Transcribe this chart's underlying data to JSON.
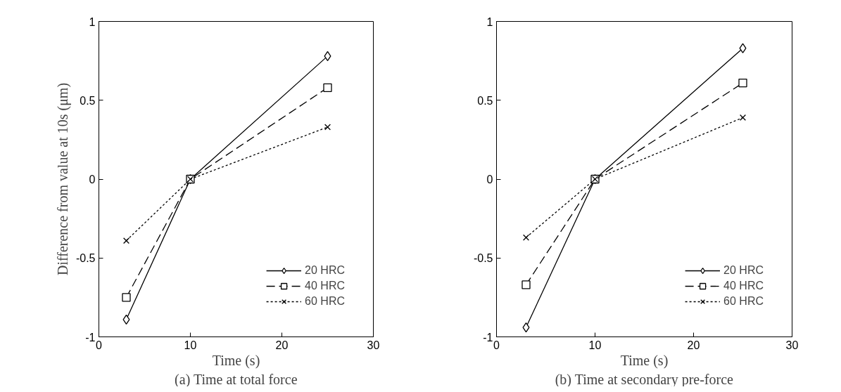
{
  "chart_data": [
    {
      "type": "line",
      "xlabel": "Time (s)",
      "ylabel": "Difference from value at 10s (μm)",
      "annotations": [
        "(a) Time at total force"
      ],
      "x": [
        3,
        10,
        25
      ],
      "xlim": [
        0,
        30
      ],
      "xticks": [
        0,
        10,
        20,
        30
      ],
      "ylim": [
        -1,
        1
      ],
      "yticks": [
        -1,
        -0.5,
        0,
        0.5,
        1
      ],
      "grid": false,
      "legend": "bottom right",
      "series": [
        {
          "name": "20 HRC",
          "color": "#000000",
          "marker": "diamond",
          "line_style": "solid",
          "values": [
            -0.89,
            0,
            0.78
          ]
        },
        {
          "name": "40 HRC",
          "color": "#000000",
          "marker": "square",
          "line_style": "dashed",
          "values": [
            -0.75,
            0,
            0.58
          ]
        },
        {
          "name": "60 HRC",
          "color": "#000000",
          "marker": "cross",
          "line_style": "dotted",
          "values": [
            -0.39,
            0,
            0.33
          ]
        }
      ]
    },
    {
      "type": "line",
      "xlabel": "Time (s)",
      "annotations": [
        "(b) Time at secondary pre-force"
      ],
      "x": [
        3,
        10,
        25
      ],
      "xlim": [
        0,
        30
      ],
      "xticks": [
        0,
        10,
        20,
        30
      ],
      "ylim": [
        -1,
        1
      ],
      "yticks": [
        -1,
        -0.5,
        0,
        0.5,
        1
      ],
      "grid": false,
      "legend": "bottom right",
      "series": [
        {
          "name": "20 HRC",
          "color": "#000000",
          "marker": "diamond",
          "line_style": "solid",
          "values": [
            -0.94,
            0,
            0.83
          ]
        },
        {
          "name": "40 HRC",
          "color": "#000000",
          "marker": "square",
          "line_style": "dashed",
          "values": [
            -0.67,
            0,
            0.61
          ]
        },
        {
          "name": "60 HRC",
          "color": "#000000",
          "marker": "cross",
          "line_style": "dotted",
          "values": [
            -0.37,
            0,
            0.39
          ]
        }
      ]
    }
  ]
}
